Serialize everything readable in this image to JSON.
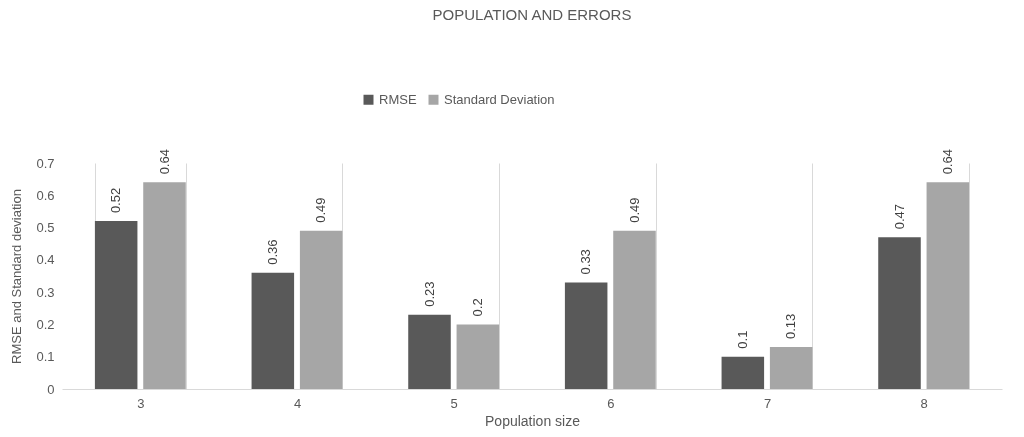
{
  "chart_data": {
    "type": "bar",
    "title": "POPULATION AND ERRORS",
    "xlabel": "Population size",
    "ylabel": "RMSE and Standard deviation",
    "categories": [
      "3",
      "4",
      "5",
      "6",
      "7",
      "8"
    ],
    "series": [
      {
        "name": "RMSE",
        "color": "#595959",
        "values": [
          0.52,
          0.36,
          0.23,
          0.33,
          0.1,
          0.47
        ]
      },
      {
        "name": "Standard Deviation",
        "color": "#a6a6a6",
        "values": [
          0.64,
          0.49,
          0.2,
          0.49,
          0.13,
          0.64
        ]
      }
    ],
    "ylim": [
      0,
      0.7
    ],
    "yticks": [
      0,
      0.1,
      0.2,
      0.3,
      0.4,
      0.5,
      0.6,
      0.7
    ],
    "grid": "x",
    "legend": "top",
    "data_labels": true
  }
}
